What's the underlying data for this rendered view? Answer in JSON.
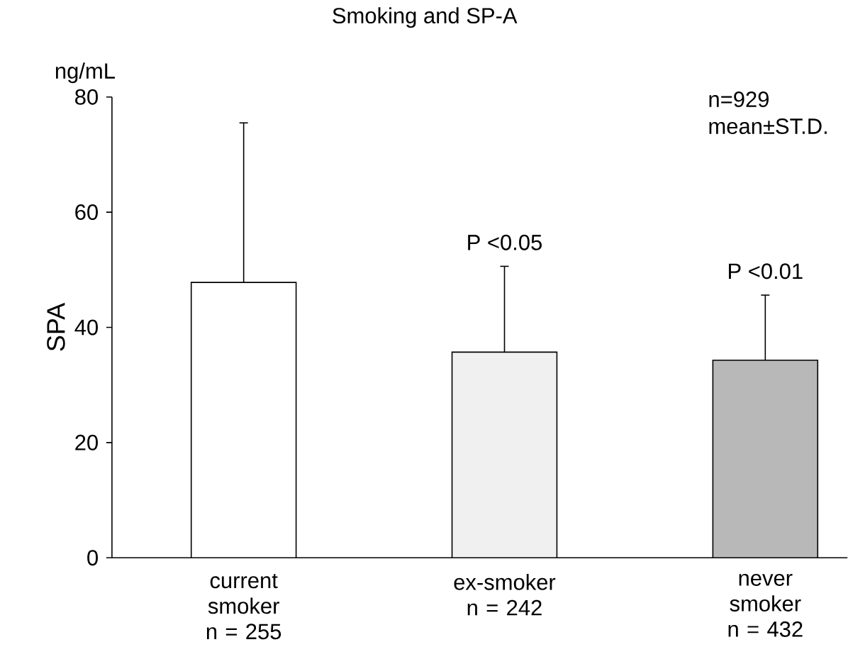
{
  "chart_data": {
    "type": "bar",
    "title": "Smoking and SP-A",
    "ylabel": "SPA",
    "categories": [
      "current smoker n = 255",
      "ex-smoker n = 242",
      "never smoker n = 432"
    ],
    "values": [
      47.8,
      35.7,
      34.3
    ],
    "errors": [
      [
        47.8,
        75.5
      ],
      [
        35.7,
        50.6
      ],
      [
        34.3,
        45.6
      ]
    ],
    "colors": [
      "#ffffff",
      "#f0f0f0",
      "#b8b8b8"
    ],
    "ylim": [
      0,
      80
    ],
    "yticks": [
      0,
      20,
      40,
      60,
      80
    ],
    "annotations": [
      "ng/mL",
      "n=929",
      "mean±ST.D.",
      "P <0.05",
      "P <0.01"
    ]
  }
}
